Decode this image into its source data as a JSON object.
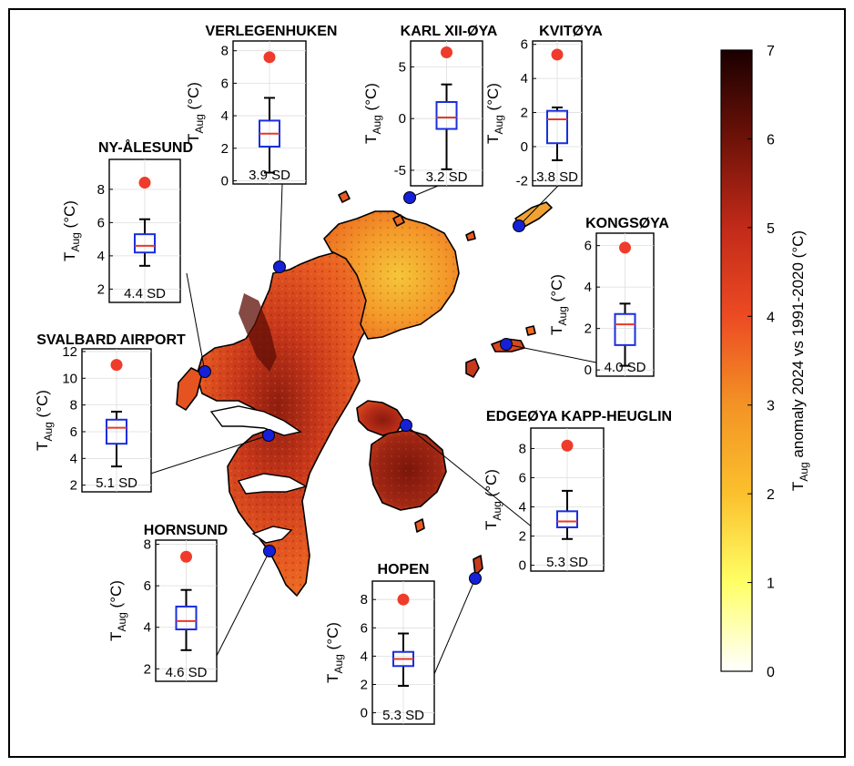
{
  "colorbar": {
    "min": 0,
    "max": 7,
    "ticks": [
      "0",
      "1",
      "2",
      "3",
      "4",
      "5",
      "6",
      "7"
    ],
    "label_main": "T",
    "label_sub": "Aug",
    "label_rest": " anomaly 2024 vs 1991-2020 (°C)",
    "colormap": [
      "#ffffff",
      "#ffff66",
      "#fbc02d",
      "#f39325",
      "#ec4b23",
      "#c22a19",
      "#6e1208",
      "#1a0000"
    ]
  },
  "ylabel": {
    "main": "T",
    "sub": "Aug",
    "unit": " (°C)"
  },
  "stations": [
    {
      "name": "VERLEGENHUKEN",
      "sd": "3.9 SD",
      "ticks": [
        "0",
        "2",
        "4",
        "6",
        "8"
      ],
      "ylim": [
        -0.2,
        8.6
      ],
      "box": {
        "q1": 2.1,
        "median": 2.9,
        "q3": 3.7,
        "wlow": 0.5,
        "whigh": 5.1
      },
      "obs_2024": 7.6
    },
    {
      "name": "KARL XII-ØYA",
      "sd": "3.2 SD",
      "ticks": [
        "-5",
        "0",
        "5"
      ],
      "ylim": [
        -6.5,
        7.5
      ],
      "box": {
        "q1": -1.0,
        "median": 0.1,
        "q3": 1.6,
        "wlow": -4.9,
        "whigh": 3.3
      },
      "obs_2024": 6.4
    },
    {
      "name": "KVITØYA",
      "sd": "3.8 SD",
      "ticks": [
        "-2",
        "0",
        "2",
        "4",
        "6"
      ],
      "ylim": [
        -2.3,
        6.2
      ],
      "box": {
        "q1": 0.2,
        "median": 1.6,
        "q3": 2.1,
        "wlow": -0.8,
        "whigh": 2.3
      },
      "obs_2024": 5.4
    },
    {
      "name": "NY-ÅLESUND",
      "sd": "4.4 SD",
      "ticks": [
        "2",
        "4",
        "6",
        "8"
      ],
      "ylim": [
        1.2,
        9.8
      ],
      "box": {
        "q1": 4.2,
        "median": 4.6,
        "q3": 5.3,
        "wlow": 3.4,
        "whigh": 6.2
      },
      "obs_2024": 8.4
    },
    {
      "name": "KONGSØYA",
      "sd": "4.0 SD",
      "ticks": [
        "0",
        "2",
        "4",
        "6"
      ],
      "ylim": [
        -0.3,
        6.6
      ],
      "box": {
        "q1": 1.2,
        "median": 2.2,
        "q3": 2.7,
        "wlow": 0.2,
        "whigh": 3.2
      },
      "obs_2024": 5.9
    },
    {
      "name": "SVALBARD AIRPORT",
      "sd": "5.1 SD",
      "ticks": [
        "2",
        "4",
        "6",
        "8",
        "10",
        "12"
      ],
      "ylim": [
        1.5,
        12.2
      ],
      "box": {
        "q1": 5.1,
        "median": 6.3,
        "q3": 6.9,
        "wlow": 3.4,
        "whigh": 7.5
      },
      "obs_2024": 11.0
    },
    {
      "name": "EDGEØYA KAPP-HEUGLIN",
      "sd": "5.3 SD",
      "ticks": [
        "0",
        "2",
        "4",
        "6",
        "8"
      ],
      "ylim": [
        -0.4,
        9.4
      ],
      "box": {
        "q1": 2.6,
        "median": 3.0,
        "q3": 3.7,
        "wlow": 1.8,
        "whigh": 5.1
      },
      "obs_2024": 8.2
    },
    {
      "name": "HORNSUND",
      "sd": "4.6 SD",
      "ticks": [
        "2",
        "4",
        "6",
        "8"
      ],
      "ylim": [
        1.4,
        8.2
      ],
      "box": {
        "q1": 3.9,
        "median": 4.3,
        "q3": 5.0,
        "wlow": 2.9,
        "whigh": 5.8
      },
      "obs_2024": 7.4
    },
    {
      "name": "HOPEN",
      "sd": "5.3 SD",
      "ticks": [
        "0",
        "2",
        "4",
        "6",
        "8"
      ],
      "ylim": [
        -0.8,
        9.3
      ],
      "box": {
        "q1": 3.3,
        "median": 3.8,
        "q3": 4.3,
        "wlow": 1.9,
        "whigh": 5.6
      },
      "obs_2024": 8.0
    }
  ]
}
